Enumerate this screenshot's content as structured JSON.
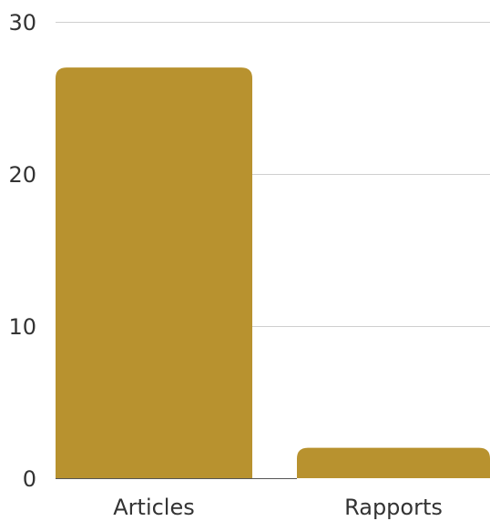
{
  "chart_data": {
    "type": "bar",
    "categories": [
      "Articles",
      "Rapports"
    ],
    "values": [
      27,
      2
    ],
    "ylim": [
      0,
      30
    ],
    "yticks": [
      0,
      10,
      20,
      30
    ],
    "ytick_labels": [
      "0",
      "10",
      "20",
      "30"
    ],
    "grid": true,
    "legend": "none",
    "colors": {
      "bar": "#b8922f",
      "grid": "#cfcfcf",
      "text": "#333333"
    }
  }
}
